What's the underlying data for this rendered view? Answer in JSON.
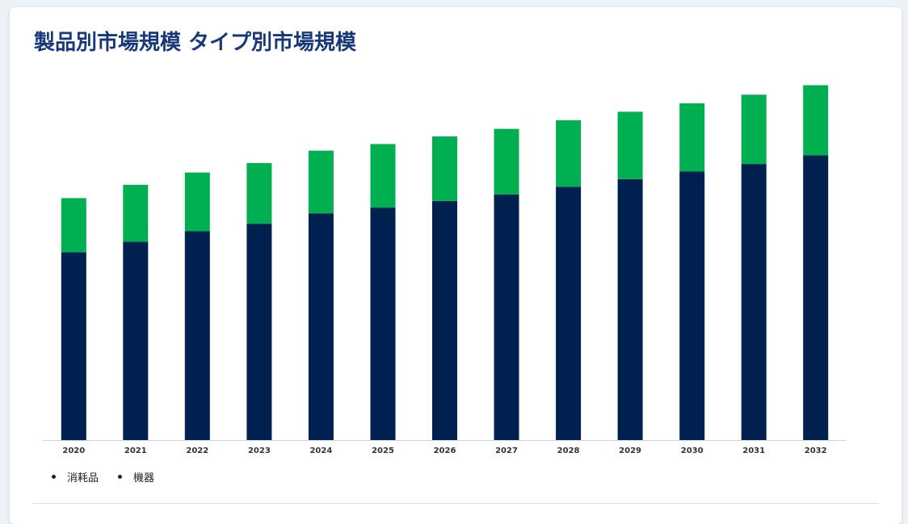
{
  "page": {
    "title": "製品別市場規模 タイプ別市場規模"
  },
  "colors": {
    "title": "#17397c",
    "consumables": "#00204f",
    "equipment": "#00b050"
  },
  "legend": {
    "items": [
      {
        "label": "消耗品"
      },
      {
        "label": "機器"
      }
    ]
  },
  "chart_data": {
    "type": "bar",
    "stacked": true,
    "categories": [
      "2020",
      "2021",
      "2022",
      "2023",
      "2024",
      "2025",
      "2026",
      "2027",
      "2028",
      "2029",
      "2030",
      "2031",
      "2032"
    ],
    "series": [
      {
        "name": "消耗品",
        "values": [
          198,
          209,
          220,
          228,
          239,
          245,
          252,
          259,
          267,
          275,
          283,
          291,
          300
        ]
      },
      {
        "name": "機器",
        "values": [
          57,
          60,
          62,
          64,
          66,
          67,
          68,
          69,
          70,
          71,
          72,
          73,
          74
        ]
      }
    ],
    "ylim": [
      0,
      400
    ],
    "y_axis_visible": false,
    "grid": false,
    "legend_position": "bottom-left"
  }
}
